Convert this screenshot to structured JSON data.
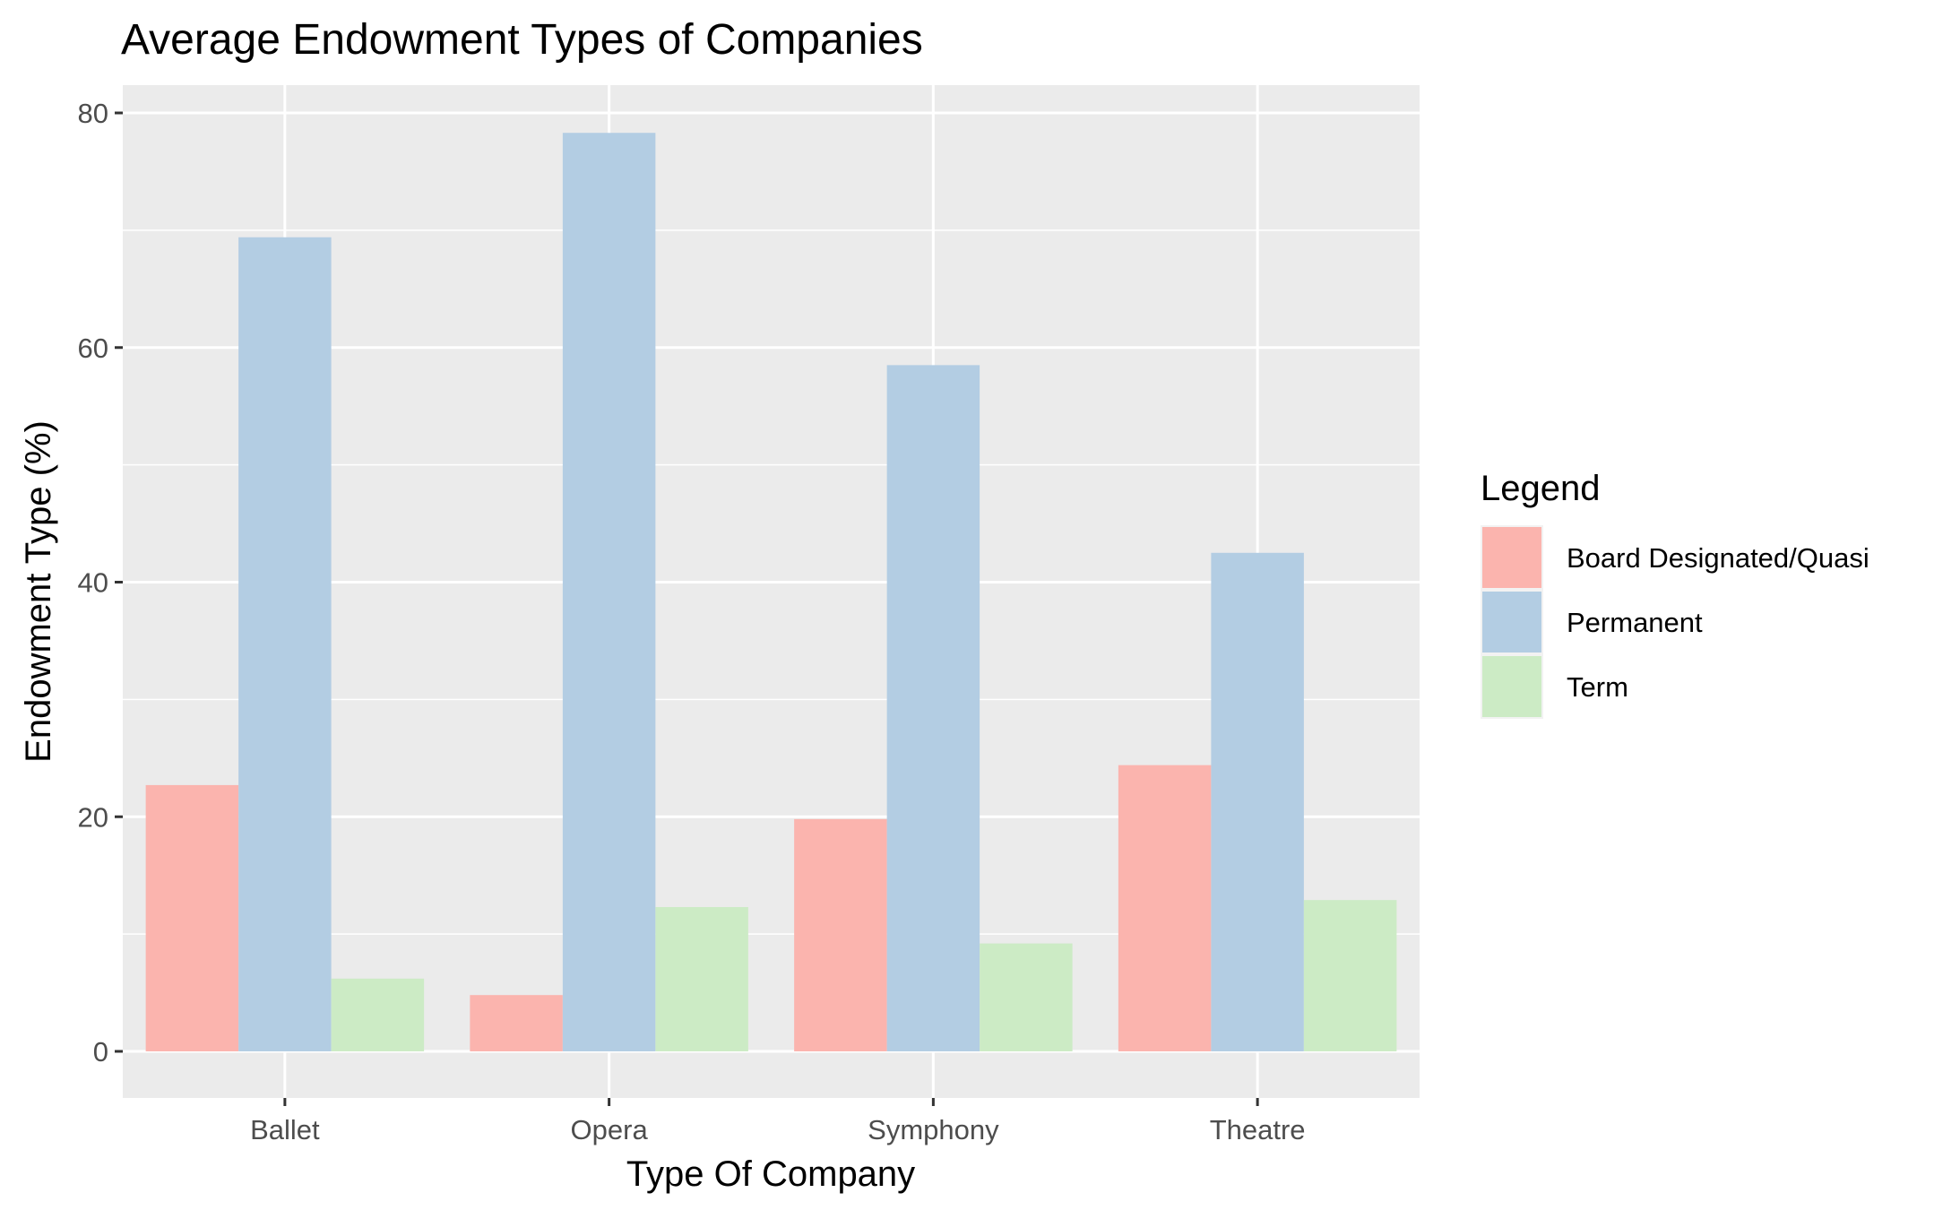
{
  "chart_data": {
    "type": "bar",
    "title": "Average Endowment Types of Companies",
    "xlabel": "Type Of Company",
    "ylabel": "Endowment Type (%)",
    "categories": [
      "Ballet",
      "Opera",
      "Symphony",
      "Theatre"
    ],
    "series": [
      {
        "name": "Board Designated/Quasi",
        "color": "#FBB4AE",
        "values": [
          22.7,
          4.8,
          19.8,
          24.4
        ]
      },
      {
        "name": "Permanent",
        "color": "#B3CDE3",
        "values": [
          69.4,
          78.3,
          58.5,
          42.5
        ]
      },
      {
        "name": "Term",
        "color": "#CCEBC5",
        "values": [
          6.2,
          12.3,
          9.2,
          12.9
        ]
      }
    ],
    "ylim": [
      -3.5,
      82.3
    ],
    "yticks": [
      0,
      20,
      40,
      60,
      80
    ],
    "grid": true,
    "legend": {
      "title": "Legend",
      "position": "right"
    },
    "panel_color": "#EBEBEB"
  }
}
